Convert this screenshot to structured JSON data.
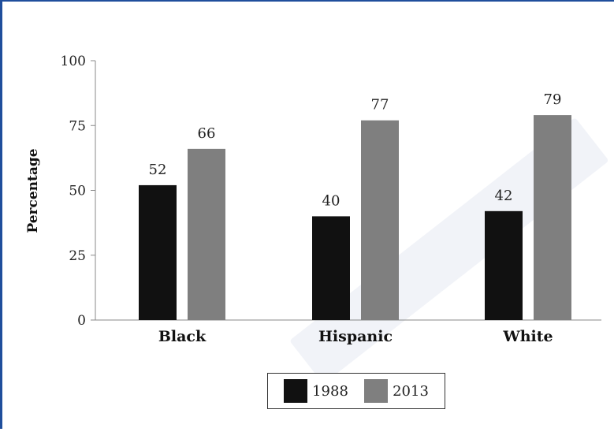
{
  "chart_data": {
    "type": "bar",
    "categories": [
      "Black",
      "Hispanic",
      "White"
    ],
    "series": [
      {
        "name": "1988",
        "values": [
          52,
          40,
          42
        ],
        "color": "#111111"
      },
      {
        "name": "2013",
        "values": [
          66,
          77,
          79
        ],
        "color": "#7f7f7f"
      }
    ],
    "ylabel": "Percentage",
    "ylim": [
      0,
      100
    ],
    "yticks": [
      0,
      25,
      50,
      75,
      100
    ],
    "grid": false,
    "legend_position": "bottom"
  }
}
